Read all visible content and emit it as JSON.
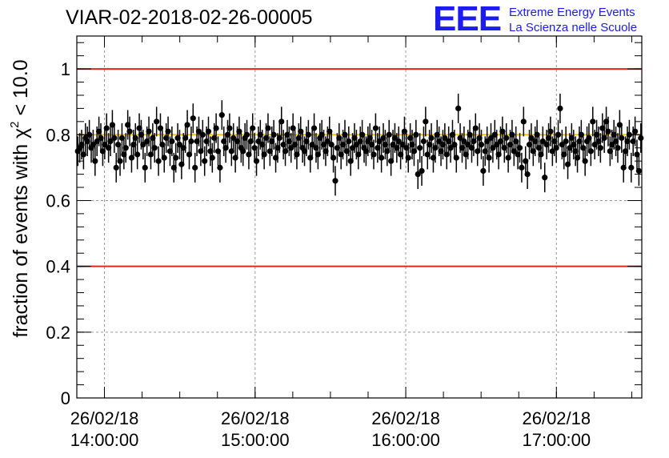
{
  "title": "VIAR-02-2018-02-26-00005",
  "logo": {
    "mark": "EEE",
    "line1": "Extreme Energy Events",
    "line2": "La Scienza nelle Scuole",
    "color": "#1c1cf0"
  },
  "chart_data": {
    "type": "scatter",
    "title": "VIAR-02-2018-02-26-00005",
    "xlabel": "",
    "ylabel_main": "fraction of events with ",
    "ylabel_symbol": "χ",
    "ylabel_sup": "2",
    "ylabel_tail": " < 10.0",
    "ylim": [
      0,
      1.1
    ],
    "xlim": [
      "26/02/18 13:49:00",
      "26/02/18 17:34:00"
    ],
    "yticks": [
      0,
      0.2,
      0.4,
      0.6,
      0.8,
      1
    ],
    "ytick_labels": [
      "0",
      "0.2",
      "0.4",
      "0.6",
      "0.8",
      "1"
    ],
    "xticks": [
      {
        "date": "26/02/18",
        "time": "14:00:00"
      },
      {
        "date": "26/02/18",
        "time": "15:00:00"
      },
      {
        "date": "26/02/18",
        "time": "16:00:00"
      },
      {
        "date": "26/02/18",
        "time": "17:00:00"
      }
    ],
    "grid": true,
    "reference_lines": [
      {
        "y": 1.0,
        "color": "#e8221c"
      },
      {
        "y": 0.4,
        "color": "#e8221c"
      },
      {
        "y": 0.8,
        "color": "#f4c200"
      }
    ],
    "marker_color": "#000000",
    "series": [
      {
        "time_start": "26/02/18 13:49:00",
        "time_end": "26/02/18 17:34:00",
        "error": 0.045,
        "values": [
          0.75,
          0.76,
          0.77,
          0.74,
          0.79,
          0.78,
          0.8,
          0.76,
          0.77,
          0.72,
          0.78,
          0.81,
          0.79,
          0.75,
          0.77,
          0.82,
          0.76,
          0.78,
          0.83,
          0.79,
          0.7,
          0.77,
          0.72,
          0.79,
          0.74,
          0.76,
          0.83,
          0.81,
          0.73,
          0.77,
          0.79,
          0.74,
          0.82,
          0.8,
          0.77,
          0.7,
          0.78,
          0.81,
          0.74,
          0.79,
          0.76,
          0.84,
          0.72,
          0.82,
          0.77,
          0.73,
          0.79,
          0.81,
          0.75,
          0.78,
          0.7,
          0.73,
          0.79,
          0.77,
          0.71,
          0.76,
          0.79,
          0.83,
          0.74,
          0.78,
          0.85,
          0.7,
          0.78,
          0.81,
          0.75,
          0.8,
          0.72,
          0.78,
          0.81,
          0.75,
          0.73,
          0.79,
          0.82,
          0.75,
          0.7,
          0.86,
          0.78,
          0.76,
          0.8,
          0.82,
          0.75,
          0.79,
          0.73,
          0.78,
          0.81,
          0.76,
          0.75,
          0.79,
          0.8,
          0.74,
          0.78,
          0.82,
          0.76,
          0.72,
          0.78,
          0.8,
          0.77,
          0.74,
          0.79,
          0.82,
          0.75,
          0.78,
          0.8,
          0.73,
          0.76,
          0.79,
          0.84,
          0.77,
          0.75,
          0.8,
          0.78,
          0.76,
          0.82,
          0.77,
          0.74,
          0.79,
          0.81,
          0.76,
          0.75,
          0.78,
          0.8,
          0.73,
          0.77,
          0.82,
          0.76,
          0.74,
          0.79,
          0.8,
          0.77,
          0.75,
          0.78,
          0.81,
          0.77,
          0.73,
          0.66,
          0.76,
          0.79,
          0.74,
          0.77,
          0.8,
          0.75,
          0.78,
          0.72,
          0.76,
          0.79,
          0.77,
          0.74,
          0.78,
          0.8,
          0.76,
          0.75,
          0.78,
          0.79,
          0.77,
          0.74,
          0.82,
          0.76,
          0.78,
          0.73,
          0.79,
          0.77,
          0.75,
          0.8,
          0.72,
          0.77,
          0.79,
          0.76,
          0.78,
          0.74,
          0.77,
          0.81,
          0.76,
          0.73,
          0.79,
          0.77,
          0.75,
          0.8,
          0.68,
          0.76,
          0.69,
          0.78,
          0.84,
          0.74,
          0.77,
          0.79,
          0.73,
          0.76,
          0.8,
          0.78,
          0.75,
          0.77,
          0.79,
          0.74,
          0.78,
          0.76,
          0.8,
          0.77,
          0.73,
          0.88,
          0.79,
          0.76,
          0.78,
          0.74,
          0.77,
          0.8,
          0.76,
          0.78,
          0.82,
          0.75,
          0.79,
          0.77,
          0.69,
          0.75,
          0.78,
          0.73,
          0.79,
          0.76,
          0.8,
          0.77,
          0.74,
          0.78,
          0.81,
          0.76,
          0.79,
          0.73,
          0.77,
          0.8,
          0.75,
          0.78,
          0.74,
          0.76,
          0.7,
          0.84,
          0.72,
          0.68,
          0.77,
          0.79,
          0.75,
          0.78,
          0.8,
          0.76,
          0.74,
          0.78,
          0.67,
          0.77,
          0.79,
          0.81,
          0.75,
          0.78,
          0.76,
          0.8,
          0.88,
          0.77,
          0.74,
          0.78,
          0.71,
          0.76,
          0.79,
          0.77,
          0.75,
          0.73,
          0.78,
          0.8,
          0.76,
          0.72,
          0.78,
          0.79,
          0.75,
          0.84,
          0.77,
          0.8,
          0.78,
          0.76,
          0.82,
          0.79,
          0.84,
          0.81,
          0.75,
          0.77,
          0.8,
          0.78,
          0.76,
          0.83,
          0.79,
          0.7,
          0.75,
          0.78,
          0.8,
          0.7,
          0.78,
          0.81,
          0.74,
          0.69,
          0.79
        ]
      }
    ]
  }
}
